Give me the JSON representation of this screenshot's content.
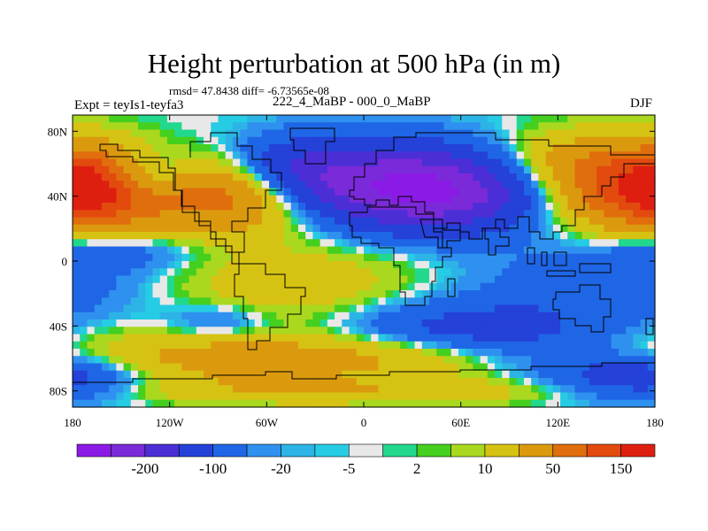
{
  "chart_data": {
    "type": "heatmap",
    "title": "Height perturbation at 500 hPa (in m)",
    "stats": "rmsd= 47.8438 diff= -6.73565e-08",
    "left_label": "Expt = teyIs1-teyfa3",
    "center_label": "222_4_MaBP - 000_0_MaBP",
    "right_label": "DJF",
    "lon_range": [
      -180,
      180
    ],
    "lat_range": [
      -90,
      90
    ],
    "x_ticks": [
      {
        "value": -180,
        "label": "180"
      },
      {
        "value": -120,
        "label": "120W"
      },
      {
        "value": -60,
        "label": "60W"
      },
      {
        "value": 0,
        "label": "0"
      },
      {
        "value": 60,
        "label": "60E"
      },
      {
        "value": 120,
        "label": "120E"
      },
      {
        "value": 180,
        "label": "180"
      }
    ],
    "y_ticks": [
      {
        "value": 80,
        "label": "80N"
      },
      {
        "value": 40,
        "label": "40N"
      },
      {
        "value": 0,
        "label": "0"
      },
      {
        "value": -40,
        "label": "40S"
      },
      {
        "value": -80,
        "label": "80S"
      }
    ],
    "levels": [
      -200,
      -150,
      -100,
      -50,
      -20,
      -10,
      -5,
      -2,
      2,
      5,
      10,
      20,
      50,
      100,
      150,
      200
    ],
    "colorbar_labels": [
      {
        "after_box": 1,
        "label": "-200"
      },
      {
        "after_box": 3,
        "label": "-100"
      },
      {
        "after_box": 5,
        "label": "-20"
      },
      {
        "after_box": 7,
        "label": "-5"
      },
      {
        "after_box": 9,
        "label": "2"
      },
      {
        "after_box": 11,
        "label": "10"
      },
      {
        "after_box": 13,
        "label": "50"
      },
      {
        "after_box": 15,
        "label": "150"
      }
    ],
    "colors": [
      "#8c1ae6",
      "#7a2ad8",
      "#4c2ed6",
      "#2441d8",
      "#1f66e6",
      "#2f91ef",
      "#2db4e6",
      "#26cce4",
      "#e8e8e8",
      "#22d88c",
      "#45cf1e",
      "#a9d81f",
      "#d6c212",
      "#db9a0e",
      "#e06e0c",
      "#e24a0e",
      "#de1f10"
    ],
    "anomalies": [
      {
        "lon": 40,
        "lat": 45,
        "amp": -230,
        "slon": 55,
        "slat": 18
      },
      {
        "lon": -40,
        "lat": 55,
        "amp": -90,
        "slon": 30,
        "slat": 15
      },
      {
        "lon": -135,
        "lat": 52,
        "amp": -80,
        "slon": 20,
        "slat": 10
      },
      {
        "lon": -85,
        "lat": 40,
        "amp": 140,
        "slon": 40,
        "slat": 15
      },
      {
        "lon": -168,
        "lat": 45,
        "amp": 150,
        "slon": 25,
        "slat": 16
      },
      {
        "lon": 160,
        "lat": 45,
        "amp": 150,
        "slon": 40,
        "slat": 18
      },
      {
        "lon": 115,
        "lat": 60,
        "amp": 60,
        "slon": 40,
        "slat": 14
      },
      {
        "lon": -160,
        "lat": 5,
        "amp": -40,
        "slon": 40,
        "slat": 8
      },
      {
        "lon": -45,
        "lat": -15,
        "amp": 40,
        "slon": 60,
        "slat": 20
      },
      {
        "lon": 60,
        "lat": -45,
        "amp": -80,
        "slon": 60,
        "slat": 14
      },
      {
        "lon": 150,
        "lat": -15,
        "amp": -40,
        "slon": 60,
        "slat": 16
      },
      {
        "lon": -90,
        "lat": -60,
        "amp": 70,
        "slon": 70,
        "slat": 12
      },
      {
        "lon": 30,
        "lat": -58,
        "amp": 60,
        "slon": 50,
        "slat": 10
      },
      {
        "lon": -90,
        "lat": -38,
        "amp": -40,
        "slon": 25,
        "slat": 8
      },
      {
        "lon": 170,
        "lat": -72,
        "amp": -90,
        "slon": 40,
        "slat": 10
      },
      {
        "lon": 0,
        "lat": -80,
        "amp": 40,
        "slon": 120,
        "slat": 6
      }
    ]
  }
}
